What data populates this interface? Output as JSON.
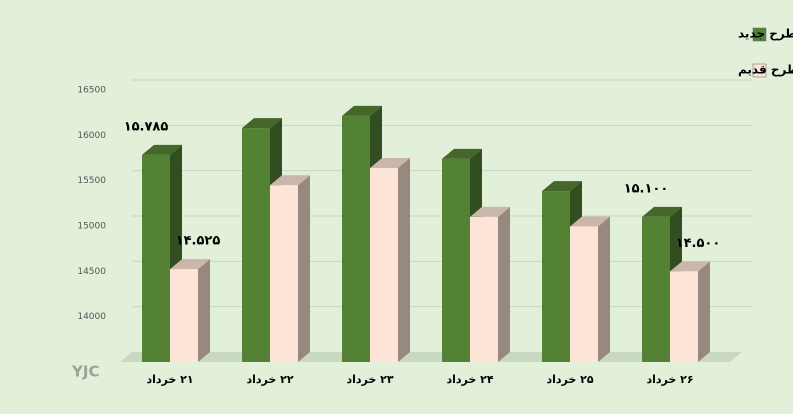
{
  "chart_data": {
    "type": "bar3d",
    "categories": [
      "۲۱ خرداد",
      "۲۲ خرداد",
      "۲۳ خرداد",
      "۲۴ خرداد",
      "۲۵ خرداد",
      "۲۶ خرداد"
    ],
    "series": [
      {
        "name": "سکه تمام بهار آزادی طرح جدید",
        "color": "#548235",
        "values": [
          15785,
          16080,
          16215,
          15740,
          15385,
          15100
        ],
        "value_labels": [
          "۱۵.۷۸۵",
          null,
          null,
          null,
          null,
          "۱۵.۱۰۰"
        ]
      },
      {
        "name": "سکه تمام بهار آزادی طرح قدیم",
        "color": "#fde4d6",
        "values": [
          14525,
          15450,
          15640,
          15100,
          14995,
          14500
        ],
        "value_labels": [
          "۱۴.۵۲۵",
          null,
          null,
          null,
          null,
          "۱۴.۵۰۰"
        ]
      }
    ],
    "ylim": [
      13500,
      16500
    ],
    "yticks": [
      14000,
      14500,
      15000,
      15500,
      16000,
      16500
    ],
    "grid": true,
    "legend": "top-right",
    "watermark": "YJC"
  }
}
